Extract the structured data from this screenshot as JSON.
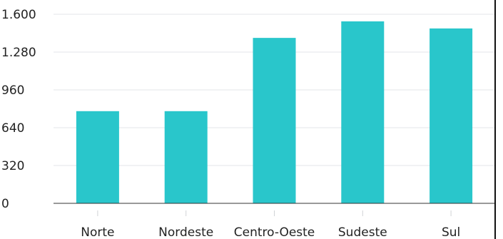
{
  "chart_data": {
    "type": "bar",
    "title": "",
    "xlabel": "",
    "ylabel": "",
    "categories": [
      "Norte",
      "Nordeste",
      "Centro-Oeste",
      "Sudeste",
      "Sul"
    ],
    "values": [
      780,
      780,
      1400,
      1540,
      1480
    ],
    "ylim": [
      0,
      1600
    ],
    "yticks": [
      0,
      320,
      640,
      960,
      1280,
      1600
    ],
    "ytick_labels": [
      "0",
      "320",
      "640",
      "960",
      "1.280",
      "1.600"
    ],
    "grid": true,
    "legend": "none",
    "bar_color": "#29c6cb"
  }
}
